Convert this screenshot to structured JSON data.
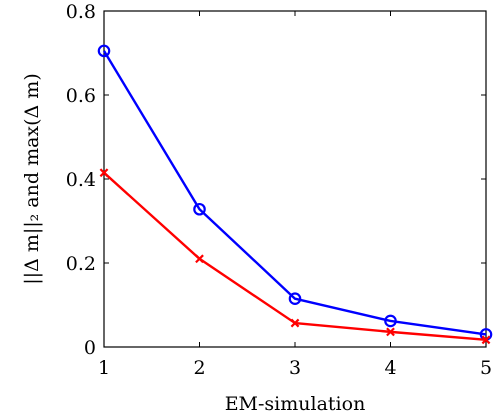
{
  "chart_data": {
    "type": "line",
    "xlabel": "EM-simulation",
    "ylabel": "||Δ m||₂ and max(Δ m)",
    "xlim": [
      1,
      5
    ],
    "ylim": [
      0,
      0.8
    ],
    "x_ticks": [
      1,
      2,
      3,
      4,
      5
    ],
    "x_tick_labels": [
      "1",
      "2",
      "3",
      "4",
      "5"
    ],
    "y_ticks": [
      0,
      0.2,
      0.4,
      0.6,
      0.8
    ],
    "y_tick_labels": [
      "0",
      "0.2",
      "0.4",
      "0.6",
      "0.8"
    ],
    "grid": false,
    "legend": false,
    "series": [
      {
        "color": "#0000ff",
        "marker": "circle",
        "x": [
          1,
          2,
          3,
          4,
          5
        ],
        "y": [
          0.705,
          0.328,
          0.115,
          0.062,
          0.03
        ]
      },
      {
        "color": "#ff0000",
        "marker": "cross",
        "x": [
          1,
          2,
          3,
          4,
          5
        ],
        "y": [
          0.415,
          0.21,
          0.057,
          0.036,
          0.017
        ]
      }
    ]
  }
}
